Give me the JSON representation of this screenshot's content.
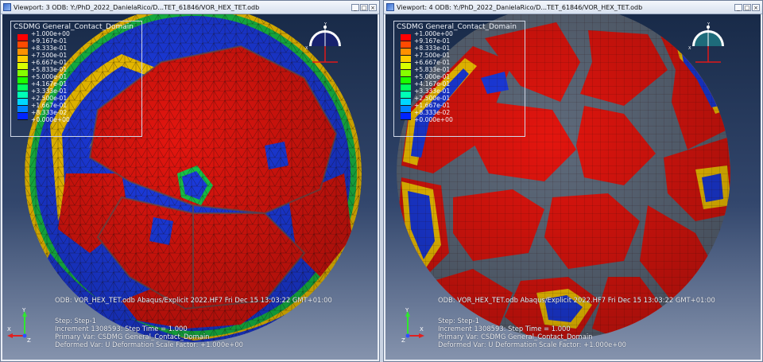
{
  "viewports": [
    {
      "id": "left",
      "title": "Viewport: 3   ODB: Y:/PhD_2022_DanielaRico/D...TET_61846/VOR_HEX_TET.odb",
      "legend": {
        "title": "CSDMG General_Contact_Domain",
        "values": [
          "+1.000e+00",
          "+9.167e-01",
          "+8.333e-01",
          "+7.500e-01",
          "+6.667e-01",
          "+5.833e-01",
          "+5.000e-01",
          "+4.167e-01",
          "+3.333e-01",
          "+2.500e-01",
          "+1.667e-01",
          "+8.333e-02",
          "+0.000e+00"
        ]
      },
      "info": {
        "line1": "ODB: VOR_HEX_TET.odb    Abaqus/Explicit 2022.HF7    Fri Dec 15 13:03:22 GMT+01:00",
        "line2": "Step: Step-1",
        "line3": "Increment 1308593: Step Time =    1.000",
        "line4": "Primary Var: CSDMG General_Contact_Domain",
        "line5": "Deformed Var: U   Deformation Scale Factor: +1.000e+00"
      },
      "triad": {
        "y": "Y",
        "x": "X",
        "z": "Z"
      }
    },
    {
      "id": "right",
      "title": "Viewport: 4   ODB: Y:/PhD_2022_DanielaRico/D...TET_61846/VOR_HEX_TET.odb",
      "legend": {
        "title": "CSDMG General_Contact_Domain",
        "values": [
          "+1.000e+00",
          "+9.167e-01",
          "+8.333e-01",
          "+7.500e-01",
          "+6.667e-01",
          "+5.833e-01",
          "+5.000e-01",
          "+4.167e-01",
          "+3.333e-01",
          "+2.500e-01",
          "+1.667e-01",
          "+8.333e-02",
          "+0.000e+00"
        ]
      },
      "info": {
        "line1": "ODB: VOR_HEX_TET.odb    Abaqus/Explicit 2022.HF7    Fri Dec 15 13:03:22 GMT+01:00",
        "line2": "Step: Step-1",
        "line3": "Increment 1308593: Step Time =    1.000",
        "line4": "Primary Var: CSDMG General_Contact_Domain",
        "line5": "Deformed Var: U   Deformation Scale Factor: +1.000e+00"
      },
      "triad": {
        "y": "Y",
        "x": "X",
        "z": "Z"
      }
    }
  ],
  "window_buttons": {
    "minimize": "_",
    "maximize": "□",
    "close": "×"
  },
  "colors": {
    "legend_scale": [
      "#ff0000",
      "#ff4a00",
      "#ff9100",
      "#ffcc00",
      "#d9ff00",
      "#85ff00",
      "#1cff00",
      "#00ff5e",
      "#00ffb6",
      "#00d6ff",
      "#0080ff",
      "#0024ff",
      "#0000e6"
    ],
    "mesh_red": "#e3150e",
    "mesh_blue": "#1c3ce6",
    "gap_gray": "#5f6b7c",
    "background_top": "#182a48",
    "background_bottom": "#8593ad"
  }
}
